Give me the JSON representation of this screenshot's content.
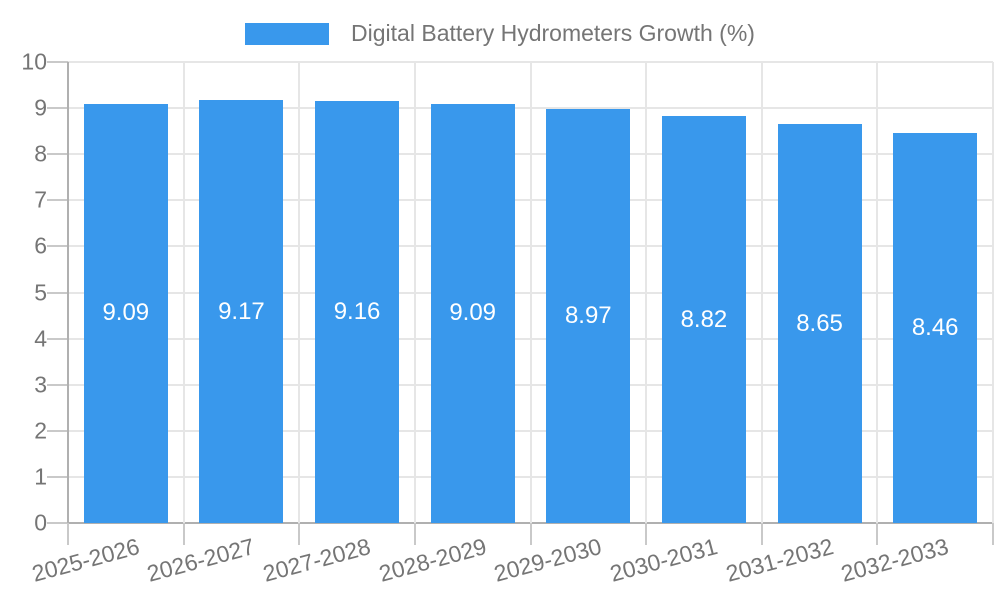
{
  "chart_data": {
    "type": "bar",
    "title": "Digital Battery Hydrometers Growth (%)",
    "legend": {
      "position": "top",
      "label": "Digital Battery Hydrometers Growth (%)"
    },
    "categories": [
      "2025-2026",
      "2026-2027",
      "2027-2028",
      "2028-2029",
      "2029-2030",
      "2030-2031",
      "2031-2032",
      "2032-2033"
    ],
    "values": [
      9.09,
      9.17,
      9.16,
      9.09,
      8.97,
      8.82,
      8.65,
      8.46
    ],
    "value_labels": [
      "9.09",
      "9.17",
      "9.16",
      "9.09",
      "8.97",
      "8.82",
      "8.65",
      "8.46"
    ],
    "xlabel": "",
    "ylabel": "",
    "ylim": [
      0,
      10
    ],
    "y_ticks": [
      0,
      1,
      2,
      3,
      4,
      5,
      6,
      7,
      8,
      9,
      10
    ],
    "grid": true,
    "x_label_rotation_deg": -15,
    "bar_width_frac": 0.727,
    "colors": {
      "bar": "#3998EC",
      "text": "#757575",
      "grid": "#e6e6e6",
      "axis": "#b0b0b0",
      "tick": "#c9c9c9",
      "value_label": "#ffffff",
      "background": "#ffffff"
    }
  }
}
